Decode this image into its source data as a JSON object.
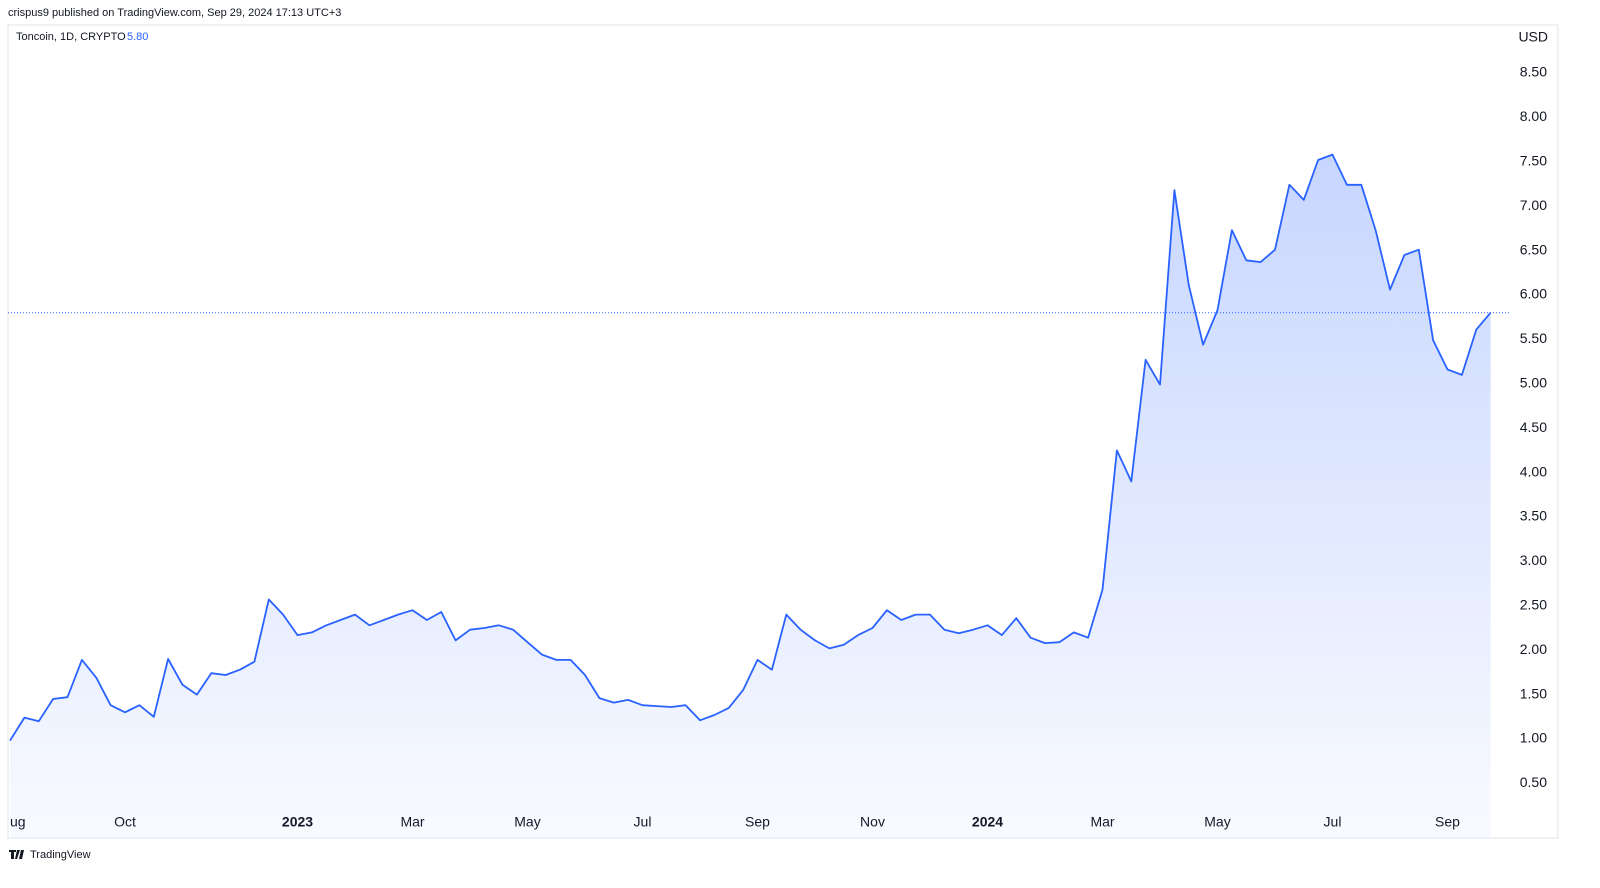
{
  "chart_data": {
    "type": "area",
    "attribution": "crispus9 published on TradingView.com, Sep 29, 2024 17:13 UTC+3",
    "title": "Toncoin, 1D, CRYPTO",
    "last_price": {
      "value": 5.8,
      "label": "5.80"
    },
    "currency": "USD",
    "brand": "TradingView",
    "color": "#2962ff",
    "categories": [
      "ug",
      null,
      null,
      null,
      null,
      null,
      null,
      null,
      "Oct",
      null,
      null,
      null,
      null,
      null,
      null,
      null,
      null,
      null,
      null,
      null,
      "2023",
      null,
      null,
      null,
      null,
      null,
      null,
      null,
      "Mar",
      null,
      null,
      null,
      null,
      null,
      null,
      null,
      "May",
      null,
      null,
      null,
      null,
      null,
      null,
      null,
      "Jul",
      null,
      null,
      null,
      null,
      null,
      null,
      null,
      "Sep",
      null,
      null,
      null,
      null,
      null,
      null,
      null,
      "Nov",
      null,
      null,
      null,
      null,
      null,
      null,
      null,
      "2024",
      null,
      null,
      null,
      null,
      null,
      null,
      null,
      "Mar",
      null,
      null,
      null,
      null,
      null,
      null,
      null,
      "May",
      null,
      null,
      null,
      null,
      null,
      null,
      null,
      "Jul",
      null,
      null,
      null,
      null,
      null,
      null,
      null,
      "Sep",
      null,
      null,
      null
    ],
    "values": [
      0.98,
      1.24,
      1.2,
      1.45,
      1.47,
      1.89,
      1.69,
      1.38,
      1.3,
      1.38,
      1.25,
      1.9,
      1.61,
      1.5,
      1.74,
      1.72,
      1.78,
      1.87,
      2.57,
      2.4,
      2.17,
      2.2,
      2.28,
      2.34,
      2.4,
      2.28,
      2.34,
      2.4,
      2.45,
      2.34,
      2.43,
      2.11,
      2.23,
      2.25,
      2.28,
      2.23,
      2.09,
      1.95,
      1.89,
      1.89,
      1.72,
      1.46,
      1.41,
      1.44,
      1.38,
      1.37,
      1.36,
      1.38,
      1.21,
      1.27,
      1.35,
      1.55,
      1.89,
      1.78,
      2.4,
      2.23,
      2.11,
      2.02,
      2.06,
      2.17,
      2.25,
      2.45,
      2.34,
      2.4,
      2.4,
      2.23,
      2.19,
      2.23,
      2.28,
      2.17,
      2.36,
      2.14,
      2.08,
      2.09,
      2.2,
      2.14,
      2.68,
      4.25,
      3.9,
      5.27,
      4.99,
      7.18,
      6.11,
      5.44,
      5.83,
      6.73,
      6.39,
      6.37,
      6.51,
      7.24,
      7.07,
      7.52,
      7.58,
      7.24,
      7.24,
      6.73,
      6.06,
      6.45,
      6.51,
      5.49,
      5.16,
      5.1,
      5.61,
      5.8
    ],
    "ylim": [
      0.2,
      9.04
    ],
    "yticks": [
      {
        "value": 0.5,
        "label": "0.50"
      },
      {
        "value": 1,
        "label": "1.00"
      },
      {
        "value": 1.5,
        "label": "1.50"
      },
      {
        "value": 2,
        "label": "2.00"
      },
      {
        "value": 2.5,
        "label": "2.50"
      },
      {
        "value": 3,
        "label": "3.00"
      },
      {
        "value": 3.5,
        "label": "3.50"
      },
      {
        "value": 4,
        "label": "4.00"
      },
      {
        "value": 4.5,
        "label": "4.50"
      },
      {
        "value": 5,
        "label": "5.00"
      },
      {
        "value": 5.5,
        "label": "5.50"
      },
      {
        "value": 6,
        "label": "6.00"
      },
      {
        "value": 6.5,
        "label": "6.50"
      },
      {
        "value": 7,
        "label": "7.00"
      },
      {
        "value": 7.5,
        "label": "7.50"
      },
      {
        "value": 8,
        "label": "8.00"
      },
      {
        "value": 8.5,
        "label": "8.50"
      }
    ],
    "grid": false
  }
}
